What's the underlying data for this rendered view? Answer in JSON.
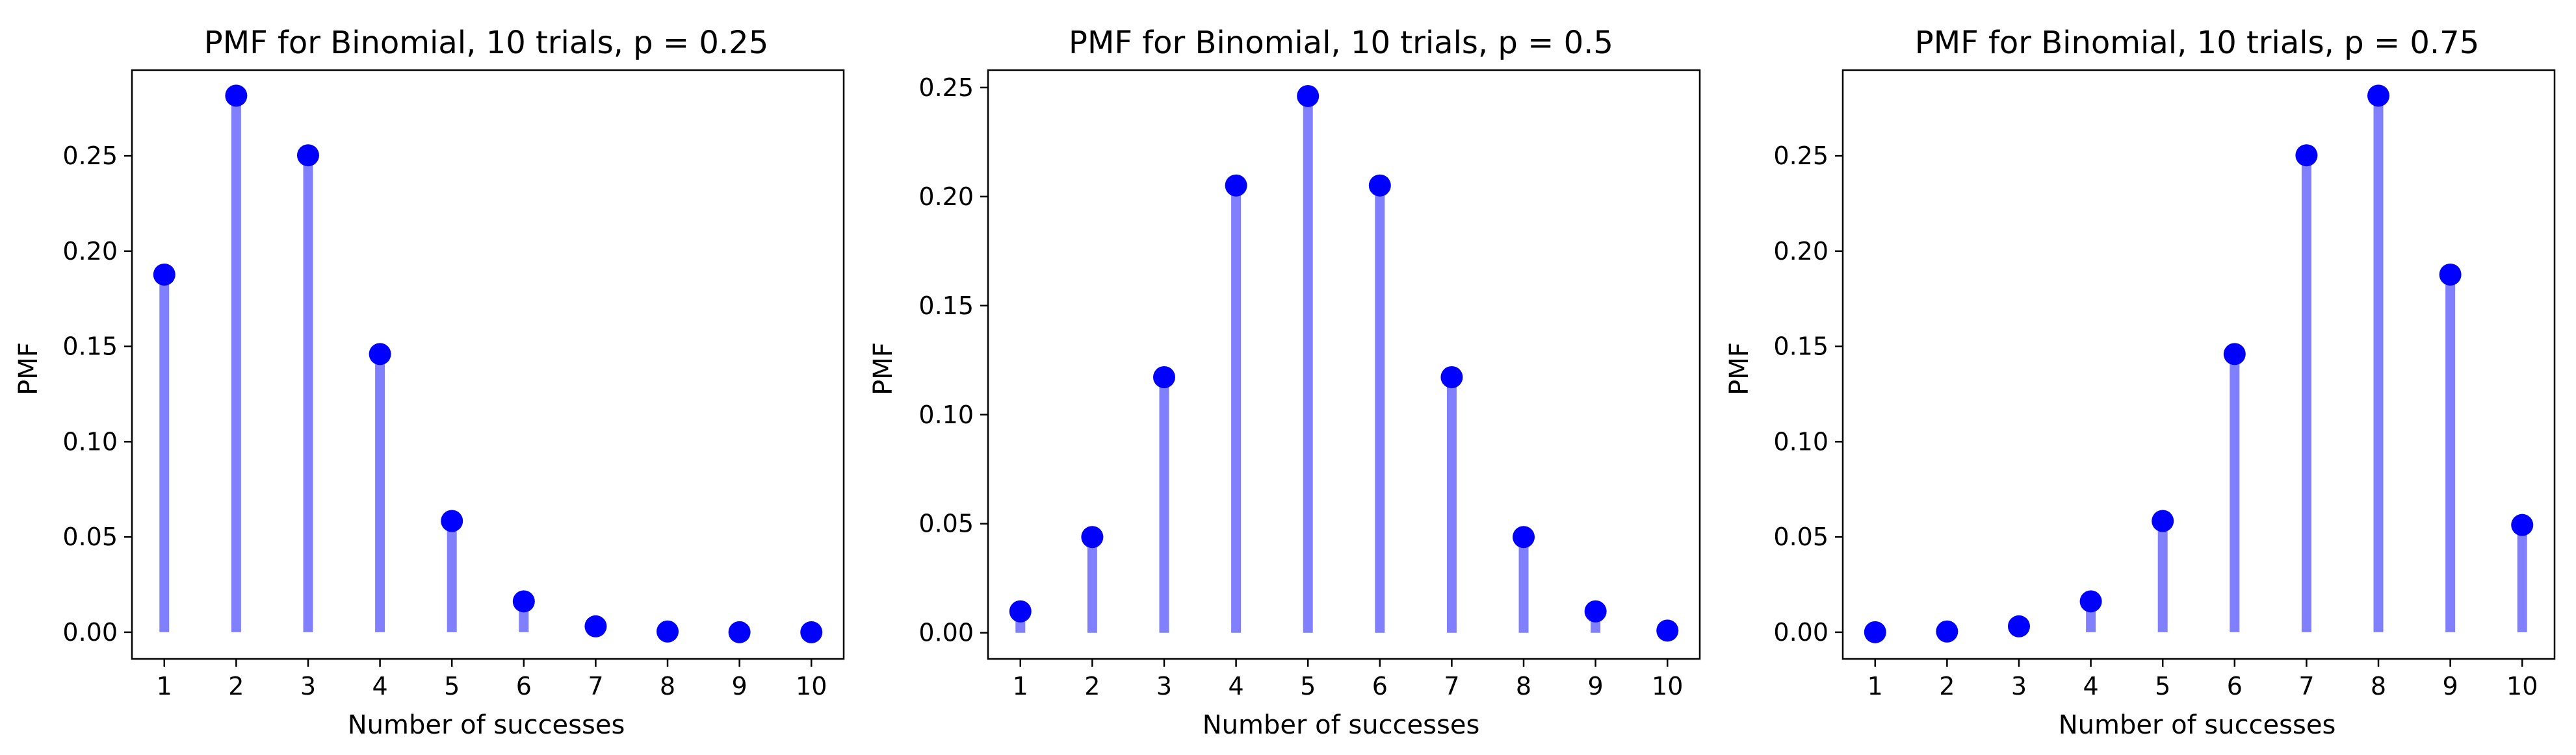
{
  "chart_data": [
    {
      "type": "stem",
      "title": "PMF for Binomial, 10 trials, p = 0.25",
      "xlabel": "Number of successes",
      "ylabel": "PMF",
      "x": [
        1,
        2,
        3,
        4,
        5,
        6,
        7,
        8,
        9,
        10
      ],
      "values": [
        0.1877,
        0.2816,
        0.2503,
        0.146,
        0.0584,
        0.0162,
        0.0031,
        0.0004,
        3e-05,
        1e-06
      ],
      "xticks": [
        1,
        2,
        3,
        4,
        5,
        6,
        7,
        8,
        9,
        10
      ],
      "xtick_labels": [
        "1",
        "2",
        "3",
        "4",
        "5",
        "6",
        "7",
        "8",
        "9",
        "10"
      ],
      "yticks": [
        0,
        0.05,
        0.1,
        0.15,
        0.2,
        0.25
      ],
      "ytick_labels": [
        "0.00",
        "0.05",
        "0.10",
        "0.15",
        "0.20",
        "0.25"
      ],
      "xlim": [
        0.55,
        10.45
      ],
      "ylim": [
        -0.014,
        0.295
      ],
      "grid": false,
      "marker_color": "#0000ff",
      "stem_color": "#8080ff"
    },
    {
      "type": "stem",
      "title": "PMF for Binomial, 10 trials, p = 0.5",
      "xlabel": "Number of successes",
      "ylabel": "PMF",
      "x": [
        1,
        2,
        3,
        4,
        5,
        6,
        7,
        8,
        9,
        10
      ],
      "values": [
        0.0098,
        0.0439,
        0.1172,
        0.2051,
        0.2461,
        0.2051,
        0.1172,
        0.0439,
        0.0098,
        0.001
      ],
      "xticks": [
        1,
        2,
        3,
        4,
        5,
        6,
        7,
        8,
        9,
        10
      ],
      "xtick_labels": [
        "1",
        "2",
        "3",
        "4",
        "5",
        "6",
        "7",
        "8",
        "9",
        "10"
      ],
      "yticks": [
        0,
        0.05,
        0.1,
        0.15,
        0.2,
        0.25
      ],
      "ytick_labels": [
        "0.00",
        "0.05",
        "0.10",
        "0.15",
        "0.20",
        "0.25"
      ],
      "xlim": [
        0.55,
        10.45
      ],
      "ylim": [
        -0.012,
        0.258
      ],
      "grid": false,
      "marker_color": "#0000ff",
      "stem_color": "#8080ff"
    },
    {
      "type": "stem",
      "title": "PMF for Binomial, 10 trials, p = 0.75",
      "xlabel": "Number of successes",
      "ylabel": "PMF",
      "x": [
        1,
        2,
        3,
        4,
        5,
        6,
        7,
        8,
        9,
        10
      ],
      "values": [
        3e-05,
        0.0004,
        0.0031,
        0.0162,
        0.0584,
        0.146,
        0.2503,
        0.2816,
        0.1877,
        0.0563
      ],
      "xticks": [
        1,
        2,
        3,
        4,
        5,
        6,
        7,
        8,
        9,
        10
      ],
      "xtick_labels": [
        "1",
        "2",
        "3",
        "4",
        "5",
        "6",
        "7",
        "8",
        "9",
        "10"
      ],
      "yticks": [
        0,
        0.05,
        0.1,
        0.15,
        0.2,
        0.25
      ],
      "ytick_labels": [
        "0.00",
        "0.05",
        "0.10",
        "0.15",
        "0.20",
        "0.25"
      ],
      "xlim": [
        0.55,
        10.45
      ],
      "ylim": [
        -0.014,
        0.295
      ],
      "grid": false,
      "marker_color": "#0000ff",
      "stem_color": "#8080ff"
    }
  ]
}
